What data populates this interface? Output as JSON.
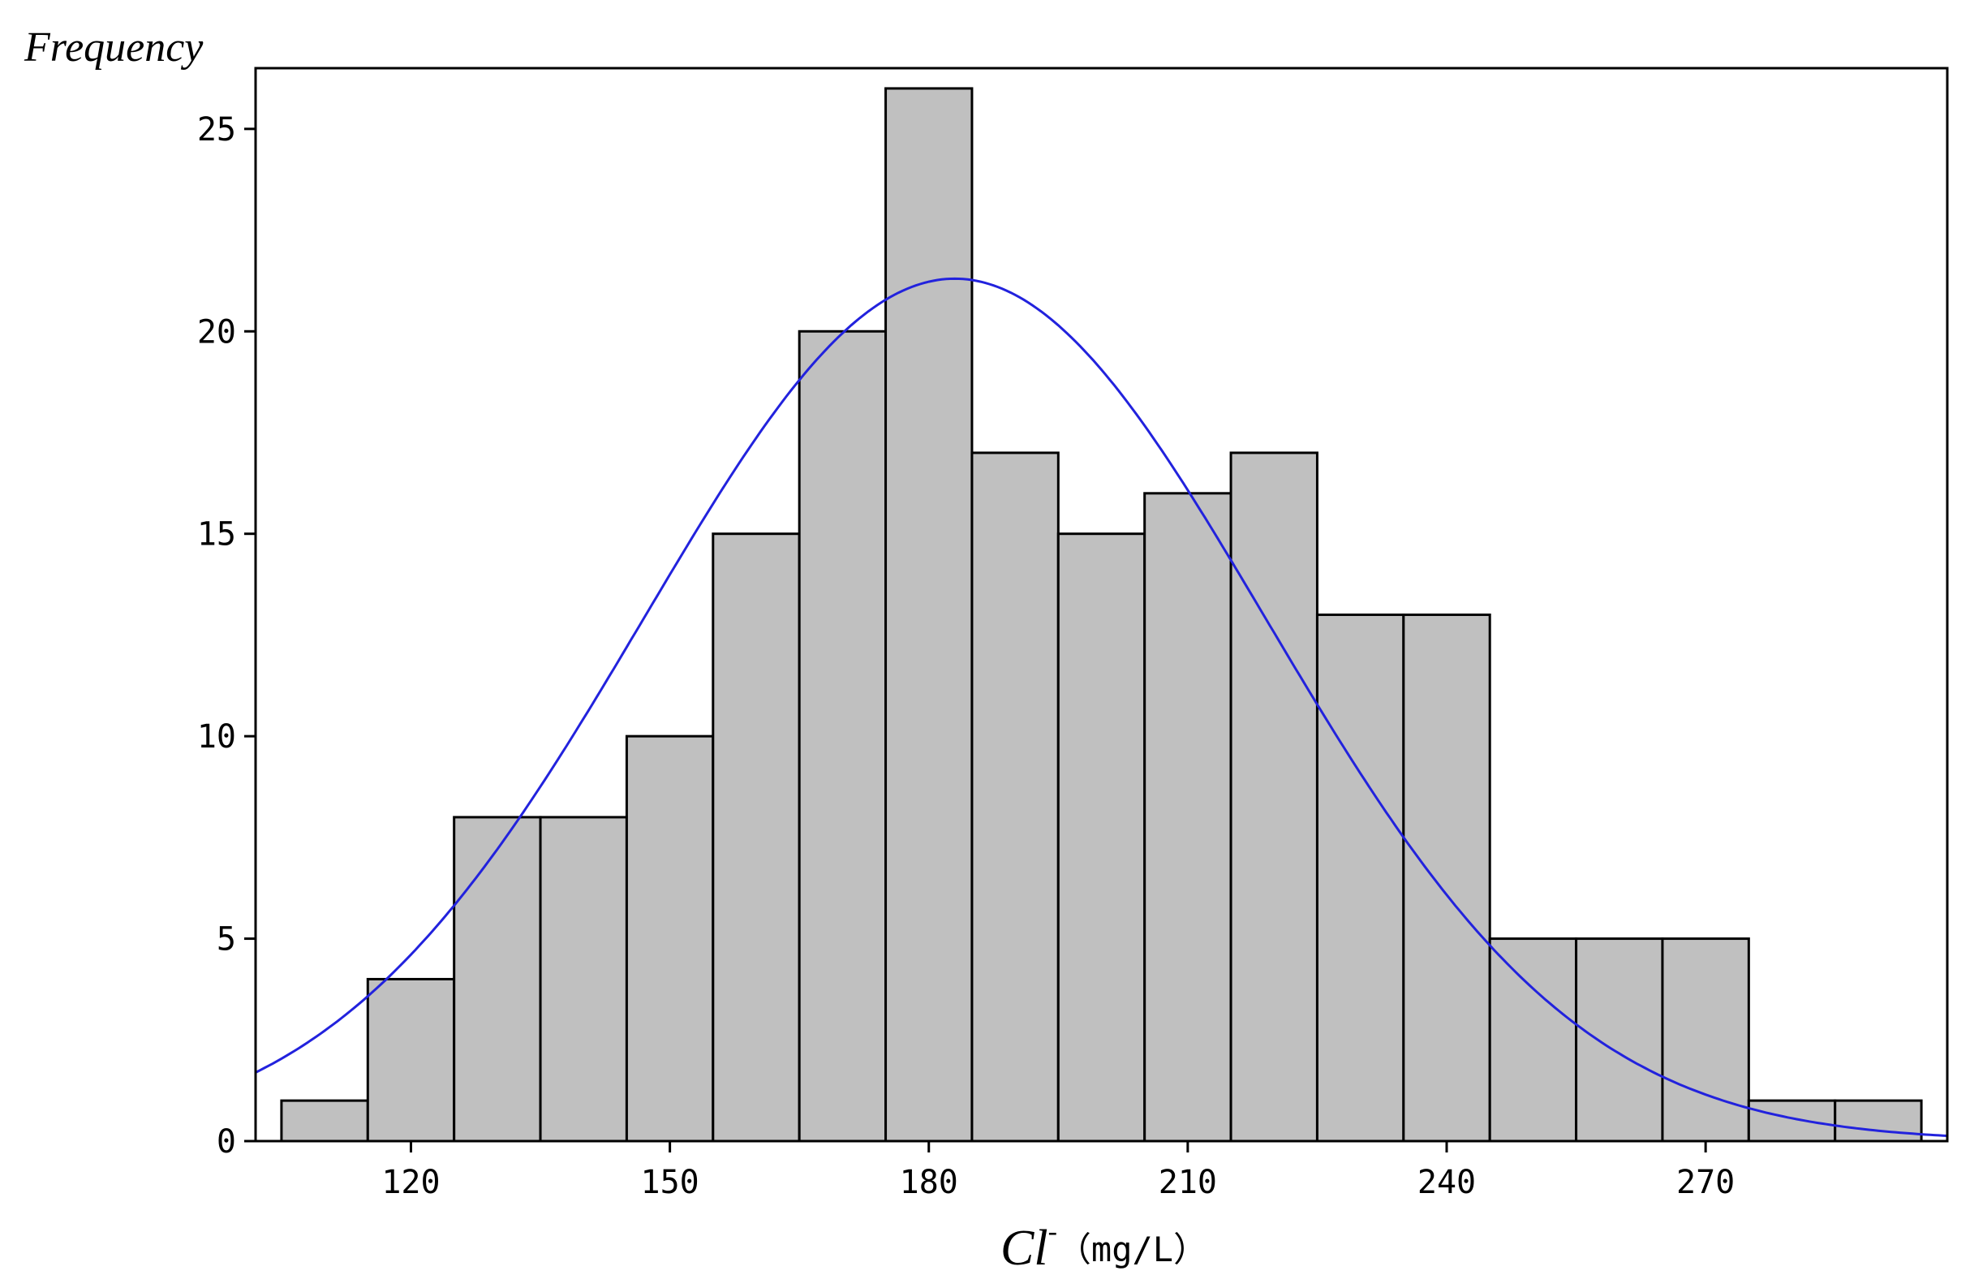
{
  "chart_data": {
    "type": "bar",
    "subtype": "histogram",
    "ylabel": "Frequency",
    "xlabel": {
      "symbol": "Cl",
      "superscript": "-",
      "unit": "（mg/L）"
    },
    "bin_width": 10,
    "bins": [
      {
        "start": 105,
        "end": 115,
        "count": 1
      },
      {
        "start": 115,
        "end": 125,
        "count": 4
      },
      {
        "start": 125,
        "end": 135,
        "count": 8
      },
      {
        "start": 135,
        "end": 145,
        "count": 8
      },
      {
        "start": 145,
        "end": 155,
        "count": 10
      },
      {
        "start": 155,
        "end": 165,
        "count": 15
      },
      {
        "start": 165,
        "end": 175,
        "count": 20
      },
      {
        "start": 175,
        "end": 185,
        "count": 26
      },
      {
        "start": 185,
        "end": 195,
        "count": 17
      },
      {
        "start": 195,
        "end": 205,
        "count": 15
      },
      {
        "start": 205,
        "end": 215,
        "count": 16
      },
      {
        "start": 215,
        "end": 225,
        "count": 17
      },
      {
        "start": 225,
        "end": 235,
        "count": 13
      },
      {
        "start": 235,
        "end": 245,
        "count": 13
      },
      {
        "start": 245,
        "end": 255,
        "count": 5
      },
      {
        "start": 255,
        "end": 265,
        "count": 5
      },
      {
        "start": 265,
        "end": 275,
        "count": 5
      },
      {
        "start": 275,
        "end": 285,
        "count": 1
      },
      {
        "start": 285,
        "end": 295,
        "count": 1
      }
    ],
    "normal_curve": {
      "mean": 183,
      "sd": 36,
      "peak": 21.3,
      "color": "#2222dd"
    },
    "xlim": [
      102,
      298
    ],
    "ylim": [
      0,
      26.5
    ],
    "xticks": [
      "120",
      "150",
      "180",
      "210",
      "240",
      "270"
    ],
    "xtick_values": [
      120,
      150,
      180,
      210,
      240,
      270
    ],
    "yticks": [
      "0",
      "5",
      "10",
      "15",
      "20",
      "25"
    ],
    "ytick_values": [
      0,
      5,
      10,
      15,
      20,
      25
    ],
    "bar_color": "#c0c0c0",
    "bar_edge_color": "#000000",
    "grid": false,
    "legend": "none"
  }
}
